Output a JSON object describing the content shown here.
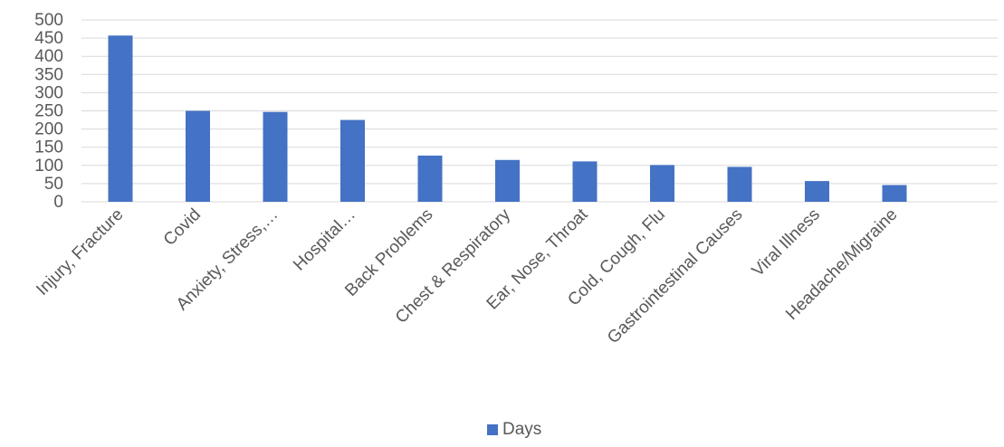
{
  "chart_data": {
    "type": "bar",
    "categories": [
      "Injury, Fracture",
      "Covid",
      "Anxiety, Stress,…",
      "Hospital…",
      "Back Problems",
      "Chest & Respiratory",
      "Ear, Nose, Throat",
      "Cold, Cough, Flu",
      "Gastrointestinal Causes",
      "Viral Illness",
      "Headache/Migraine"
    ],
    "series": [
      {
        "name": "Days",
        "color": "#4472C4",
        "values": [
          457,
          250,
          247,
          225,
          127,
          115,
          111,
          101,
          96,
          57,
          46
        ]
      }
    ],
    "title": "",
    "xlabel": "",
    "ylabel": "",
    "ylim": [
      0,
      500
    ],
    "yticks": [
      "0",
      "50",
      "100",
      "150",
      "200",
      "250",
      "300",
      "350",
      "400",
      "450",
      "500"
    ],
    "grid": true,
    "legend_position": "bottom"
  },
  "legend": {
    "label": "Days"
  }
}
